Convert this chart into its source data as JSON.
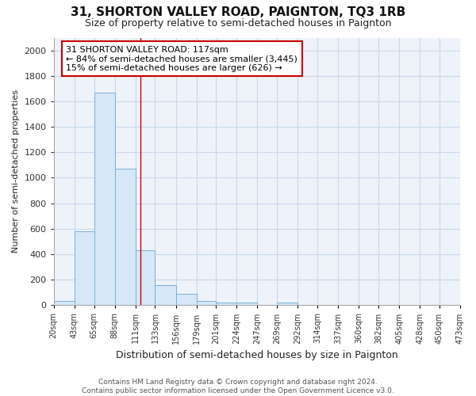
{
  "title": "31, SHORTON VALLEY ROAD, PAIGNTON, TQ3 1RB",
  "subtitle": "Size of property relative to semi-detached houses in Paignton",
  "xlabel": "Distribution of semi-detached houses by size in Paignton",
  "ylabel": "Number of semi-detached properties",
  "annotation_line1": "31 SHORTON VALLEY ROAD: 117sqm",
  "annotation_line2": "← 84% of semi-detached houses are smaller (3,445)",
  "annotation_line3": "15% of semi-detached houses are larger (626) →",
  "property_size": 117,
  "bin_edges": [
    20,
    43,
    65,
    88,
    111,
    133,
    156,
    179,
    201,
    224,
    247,
    269,
    292,
    314,
    337,
    360,
    382,
    405,
    428,
    450,
    473
  ],
  "bar_heights": [
    30,
    580,
    1670,
    1070,
    430,
    155,
    90,
    35,
    20,
    20,
    0,
    20,
    0,
    0,
    0,
    0,
    0,
    0,
    0,
    0
  ],
  "bar_color": "#d6e8f7",
  "bar_edge_color": "#7ab0d4",
  "red_line_color": "#cc0000",
  "annotation_box_color": "#cc0000",
  "grid_color": "#c8d8ea",
  "background_color": "#ffffff",
  "plot_bg_color": "#eef3fa",
  "footer_text": "Contains HM Land Registry data © Crown copyright and database right 2024.\nContains public sector information licensed under the Open Government Licence v3.0.",
  "ylim": [
    0,
    2100
  ],
  "yticks": [
    0,
    200,
    400,
    600,
    800,
    1000,
    1200,
    1400,
    1600,
    1800,
    2000
  ],
  "tick_labels": [
    "20sqm",
    "43sqm",
    "65sqm",
    "88sqm",
    "111sqm",
    "133sqm",
    "156sqm",
    "179sqm",
    "201sqm",
    "224sqm",
    "247sqm",
    "269sqm",
    "292sqm",
    "314sqm",
    "337sqm",
    "360sqm",
    "382sqm",
    "405sqm",
    "428sqm",
    "450sqm",
    "473sqm"
  ]
}
